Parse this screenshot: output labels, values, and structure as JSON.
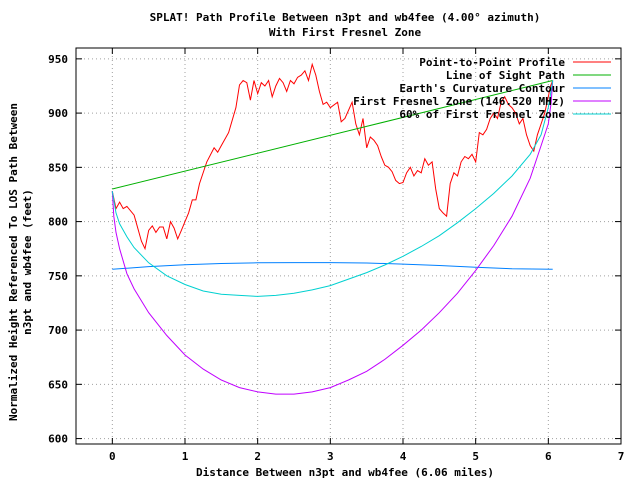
{
  "chart_data": {
    "type": "line",
    "title": "SPLAT! Path Profile Between n3pt and wb4fee (4.00° azimuth)",
    "subtitle": "With First Fresnel Zone",
    "xlabel": "Distance Between n3pt and wb4fee (6.06 miles)",
    "ylabel_lines": [
      "Normalized Height Referenced To LOS Path Between",
      "n3pt and wb4fee (feet)"
    ],
    "xlim": [
      -0.5,
      7
    ],
    "ylim": [
      595,
      960
    ],
    "xticks": [
      0,
      1,
      2,
      3,
      4,
      5,
      6,
      7
    ],
    "yticks": [
      600,
      650,
      700,
      750,
      800,
      850,
      900,
      950
    ],
    "grid": true,
    "legend_position": "top-right",
    "series": [
      {
        "name": "Point-to-Point Profile",
        "color": "#ff0000",
        "x": [
          0,
          0.05,
          0.1,
          0.15,
          0.2,
          0.3,
          0.4,
          0.45,
          0.5,
          0.55,
          0.6,
          0.65,
          0.7,
          0.75,
          0.8,
          0.85,
          0.9,
          0.95,
          1.0,
          1.05,
          1.1,
          1.15,
          1.2,
          1.3,
          1.4,
          1.45,
          1.5,
          1.6,
          1.7,
          1.75,
          1.8,
          1.85,
          1.9,
          1.95,
          2.0,
          2.05,
          2.1,
          2.15,
          2.2,
          2.25,
          2.3,
          2.35,
          2.4,
          2.45,
          2.5,
          2.55,
          2.6,
          2.65,
          2.7,
          2.75,
          2.8,
          2.85,
          2.9,
          2.95,
          3.0,
          3.1,
          3.15,
          3.2,
          3.3,
          3.35,
          3.4,
          3.45,
          3.5,
          3.55,
          3.6,
          3.65,
          3.7,
          3.75,
          3.8,
          3.85,
          3.9,
          3.95,
          4.0,
          4.05,
          4.1,
          4.15,
          4.2,
          4.25,
          4.3,
          4.35,
          4.4,
          4.45,
          4.5,
          4.55,
          4.6,
          4.65,
          4.7,
          4.75,
          4.8,
          4.85,
          4.9,
          4.95,
          5.0,
          5.05,
          5.1,
          5.15,
          5.2,
          5.25,
          5.3,
          5.35,
          5.4,
          5.45,
          5.5,
          5.55,
          5.6,
          5.65,
          5.7,
          5.75,
          5.8,
          5.85,
          5.9,
          5.95,
          6.0,
          6.03,
          6.06
        ],
        "values": [
          828,
          812,
          818,
          812,
          814,
          806,
          782,
          775,
          792,
          796,
          790,
          795,
          795,
          784,
          800,
          794,
          784,
          792,
          800,
          808,
          820,
          820,
          835,
          855,
          868,
          864,
          870,
          882,
          905,
          926,
          930,
          928,
          912,
          930,
          918,
          928,
          925,
          930,
          915,
          925,
          932,
          928,
          920,
          930,
          927,
          933,
          935,
          939,
          930,
          945,
          935,
          920,
          908,
          910,
          905,
          910,
          892,
          895,
          910,
          890,
          880,
          895,
          868,
          878,
          875,
          870,
          860,
          852,
          850,
          846,
          838,
          835,
          836,
          845,
          850,
          842,
          847,
          845,
          858,
          852,
          855,
          830,
          812,
          808,
          805,
          835,
          845,
          842,
          855,
          860,
          858,
          862,
          855,
          882,
          880,
          885,
          895,
          900,
          895,
          910,
          915,
          908,
          905,
          900,
          890,
          895,
          880,
          870,
          865,
          880,
          890,
          900,
          915,
          925,
          930
        ]
      },
      {
        "name": "Line of Sight Path",
        "color": "#00b000",
        "x": [
          0,
          6.06
        ],
        "values": [
          830,
          930
        ]
      },
      {
        "name": "Earth's Curvature Contour",
        "color": "#0080ff",
        "x": [
          0,
          0.5,
          1.0,
          1.5,
          2.0,
          2.5,
          3.0,
          3.5,
          4.0,
          4.5,
          5.0,
          5.5,
          6.06
        ],
        "values": [
          756,
          758.5,
          760.2,
          761.4,
          762,
          762.2,
          762.2,
          761.8,
          760.8,
          759.5,
          758,
          756.5,
          756
        ]
      },
      {
        "name": "First Fresnel Zone (146.520 MHz)",
        "color": "#c000ff",
        "x": [
          0,
          0.02,
          0.05,
          0.1,
          0.2,
          0.3,
          0.5,
          0.75,
          1.0,
          1.25,
          1.5,
          1.75,
          2.0,
          2.25,
          2.5,
          2.75,
          3.0,
          3.25,
          3.5,
          3.75,
          4.0,
          4.25,
          4.5,
          4.75,
          5.0,
          5.25,
          5.5,
          5.75,
          5.9,
          6.0,
          6.04,
          6.06
        ],
        "values": [
          828,
          805,
          790,
          775,
          752,
          738,
          716,
          695,
          677,
          664,
          654,
          647,
          643,
          641,
          641,
          643,
          647,
          654,
          662,
          673,
          686,
          700,
          716,
          734,
          755,
          778,
          805,
          840,
          870,
          890,
          910,
          930
        ]
      },
      {
        "name": "60% of First Fresnel Zone",
        "color": "#00d0d0",
        "x": [
          0,
          0.05,
          0.1,
          0.2,
          0.3,
          0.5,
          0.75,
          1.0,
          1.25,
          1.5,
          1.75,
          2.0,
          2.25,
          2.5,
          2.75,
          3.0,
          3.25,
          3.5,
          3.75,
          4.0,
          4.25,
          4.5,
          4.75,
          5.0,
          5.25,
          5.5,
          5.75,
          5.9,
          6.0,
          6.06
        ],
        "values": [
          828,
          808,
          798,
          786,
          776,
          762,
          750,
          742,
          736,
          733,
          732,
          731,
          732,
          734,
          737,
          741,
          747,
          753,
          760,
          768,
          777,
          787,
          799,
          812,
          826,
          842,
          862,
          880,
          905,
          930
        ]
      }
    ]
  }
}
